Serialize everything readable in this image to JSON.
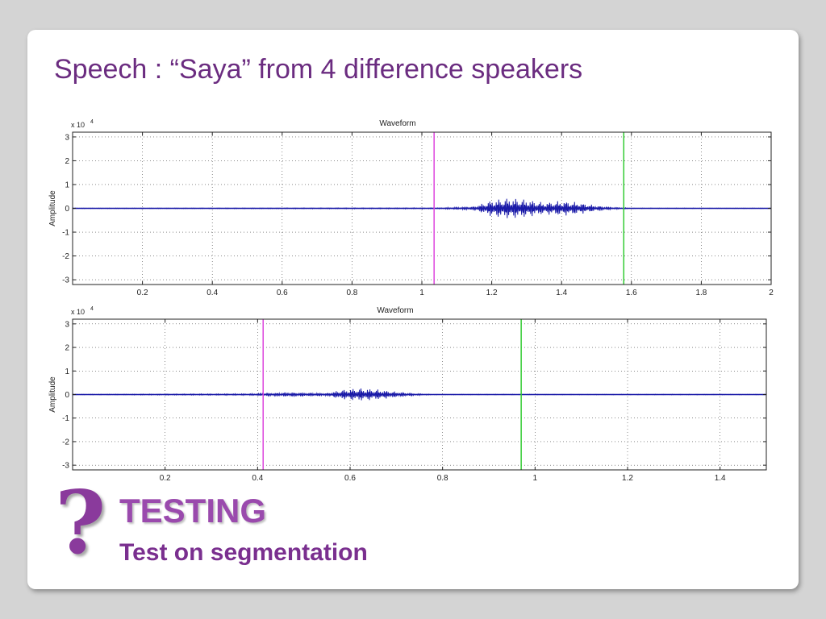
{
  "slide": {
    "title": "Speech : “Saya” from 4 difference speakers",
    "footer_icon": "question-mark-icon",
    "footer_icon_glyph": "?",
    "heading": "TESTING",
    "subheading": "Test on segmentation"
  },
  "colors": {
    "title": "#6b2c80",
    "waveform": "#1a1aa8",
    "start_marker": "#dd44dd",
    "end_marker": "#33cc33"
  },
  "chart_data": [
    {
      "type": "line",
      "title": "Waveform",
      "ylabel": "Amplitude",
      "xlabel": "",
      "y_exponent_label": "x 10",
      "y_exponent_power": "4",
      "xlim": [
        0,
        2
      ],
      "ylim": [
        -3.2,
        3.2
      ],
      "xticks": [
        0.2,
        0.4,
        0.6,
        0.8,
        1,
        1.2,
        1.4,
        1.6,
        1.8,
        2
      ],
      "xtick_labels": [
        "0.2",
        "0.4",
        "0.6",
        "0.8",
        "1",
        "1.2",
        "1.4",
        "1.6",
        "1.8",
        "2"
      ],
      "yticks": [
        3,
        2,
        1,
        0,
        -1,
        -2,
        -3
      ],
      "ytick_labels": [
        "3",
        "2",
        "1",
        "0",
        "-1",
        "-2",
        "-3"
      ],
      "grid": true,
      "markers": [
        {
          "type": "start",
          "x": 1.035,
          "color": "#dd44dd"
        },
        {
          "type": "end",
          "x": 1.578,
          "color": "#33cc33"
        }
      ],
      "envelope": [
        {
          "x": 0.0,
          "a": 0.01
        },
        {
          "x": 1.05,
          "a": 0.02
        },
        {
          "x": 1.1,
          "a": 0.05
        },
        {
          "x": 1.15,
          "a": 0.08
        },
        {
          "x": 1.2,
          "a": 0.35
        },
        {
          "x": 1.25,
          "a": 0.45
        },
        {
          "x": 1.3,
          "a": 0.38
        },
        {
          "x": 1.35,
          "a": 0.25
        },
        {
          "x": 1.4,
          "a": 0.32
        },
        {
          "x": 1.45,
          "a": 0.25
        },
        {
          "x": 1.5,
          "a": 0.12
        },
        {
          "x": 1.55,
          "a": 0.04
        },
        {
          "x": 1.6,
          "a": 0.01
        },
        {
          "x": 2.0,
          "a": 0.01
        }
      ]
    },
    {
      "type": "line",
      "title": "Waveform",
      "ylabel": "Amplitude",
      "xlabel": "",
      "y_exponent_label": "x 10",
      "y_exponent_power": "4",
      "xlim": [
        0,
        1.5
      ],
      "ylim": [
        -3.2,
        3.2
      ],
      "xticks": [
        0.2,
        0.4,
        0.6,
        0.8,
        1,
        1.2,
        1.4
      ],
      "xtick_labels": [
        "0.2",
        "0.4",
        "0.6",
        "0.8",
        "1",
        "1.2",
        "1.4"
      ],
      "yticks": [
        3,
        2,
        1,
        0,
        -1,
        -2,
        -3
      ],
      "ytick_labels": [
        "3",
        "2",
        "1",
        "0",
        "-1",
        "-2",
        "-3"
      ],
      "grid": true,
      "markers": [
        {
          "type": "start",
          "x": 0.412,
          "color": "#dd44dd"
        },
        {
          "type": "end",
          "x": 0.97,
          "color": "#33cc33"
        }
      ],
      "envelope": [
        {
          "x": 0.0,
          "a": 0.01
        },
        {
          "x": 0.38,
          "a": 0.03
        },
        {
          "x": 0.42,
          "a": 0.06
        },
        {
          "x": 0.47,
          "a": 0.1
        },
        {
          "x": 0.5,
          "a": 0.08
        },
        {
          "x": 0.55,
          "a": 0.06
        },
        {
          "x": 0.58,
          "a": 0.2
        },
        {
          "x": 0.62,
          "a": 0.28
        },
        {
          "x": 0.66,
          "a": 0.22
        },
        {
          "x": 0.7,
          "a": 0.12
        },
        {
          "x": 0.74,
          "a": 0.04
        },
        {
          "x": 0.78,
          "a": 0.01
        },
        {
          "x": 1.5,
          "a": 0.01
        }
      ]
    }
  ]
}
